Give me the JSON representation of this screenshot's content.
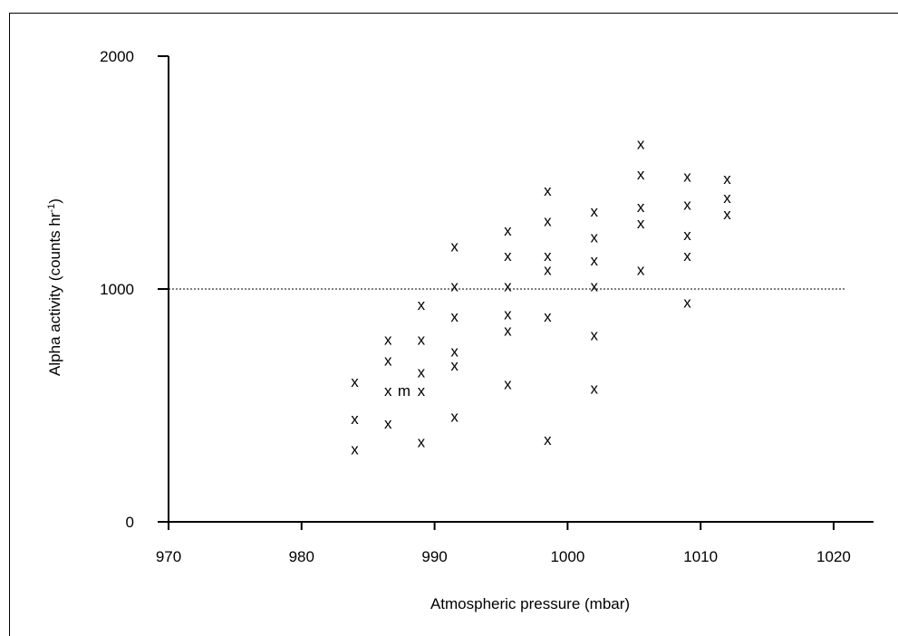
{
  "chart_data": {
    "type": "scatter",
    "xlabel": "Atmospheric pressure (mbar)",
    "ylabel_main": "Alpha activity (counts hr",
    "ylabel_sup": "-1",
    "ylabel_tail": ")",
    "xlim": [
      970,
      1023
    ],
    "ylim": [
      0,
      2000
    ],
    "xticks": [
      970,
      980,
      990,
      1000,
      1010,
      1020
    ],
    "yticks": [
      0,
      1000,
      2000
    ],
    "reference_line": {
      "y": 1000,
      "style": "dotted"
    },
    "marker": "x",
    "points": [
      {
        "x": 984,
        "y": 600
      },
      {
        "x": 984,
        "y": 440
      },
      {
        "x": 984,
        "y": 310
      },
      {
        "x": 986.5,
        "y": 780
      },
      {
        "x": 986.5,
        "y": 690
      },
      {
        "x": 986.5,
        "y": 560
      },
      {
        "x": 986.5,
        "y": 420
      },
      {
        "x": 989,
        "y": 930
      },
      {
        "x": 989,
        "y": 780
      },
      {
        "x": 989,
        "y": 640
      },
      {
        "x": 989,
        "y": 560
      },
      {
        "x": 989,
        "y": 340
      },
      {
        "x": 991.5,
        "y": 1180
      },
      {
        "x": 991.5,
        "y": 1010
      },
      {
        "x": 991.5,
        "y": 880
      },
      {
        "x": 991.5,
        "y": 730
      },
      {
        "x": 991.5,
        "y": 670
      },
      {
        "x": 991.5,
        "y": 450
      },
      {
        "x": 995.5,
        "y": 1250
      },
      {
        "x": 995.5,
        "y": 1140
      },
      {
        "x": 995.5,
        "y": 1010
      },
      {
        "x": 995.5,
        "y": 890
      },
      {
        "x": 995.5,
        "y": 820
      },
      {
        "x": 995.5,
        "y": 590
      },
      {
        "x": 998.5,
        "y": 1420
      },
      {
        "x": 998.5,
        "y": 1290
      },
      {
        "x": 998.5,
        "y": 1140
      },
      {
        "x": 998.5,
        "y": 1080
      },
      {
        "x": 998.5,
        "y": 880
      },
      {
        "x": 998.5,
        "y": 350
      },
      {
        "x": 1002,
        "y": 1330
      },
      {
        "x": 1002,
        "y": 1220
      },
      {
        "x": 1002,
        "y": 1120
      },
      {
        "x": 1002,
        "y": 1010
      },
      {
        "x": 1002,
        "y": 800
      },
      {
        "x": 1002,
        "y": 570
      },
      {
        "x": 1005.5,
        "y": 1620
      },
      {
        "x": 1005.5,
        "y": 1490
      },
      {
        "x": 1005.5,
        "y": 1350
      },
      {
        "x": 1005.5,
        "y": 1280
      },
      {
        "x": 1005.5,
        "y": 1080
      },
      {
        "x": 1009,
        "y": 1480
      },
      {
        "x": 1009,
        "y": 1360
      },
      {
        "x": 1009,
        "y": 1230
      },
      {
        "x": 1009,
        "y": 1140
      },
      {
        "x": 1009,
        "y": 940
      },
      {
        "x": 1012,
        "y": 1470
      },
      {
        "x": 1012,
        "y": 1390
      },
      {
        "x": 1012,
        "y": 1320
      }
    ],
    "annotations": [
      {
        "text": "m",
        "x": 987.5,
        "y": 560
      }
    ]
  }
}
